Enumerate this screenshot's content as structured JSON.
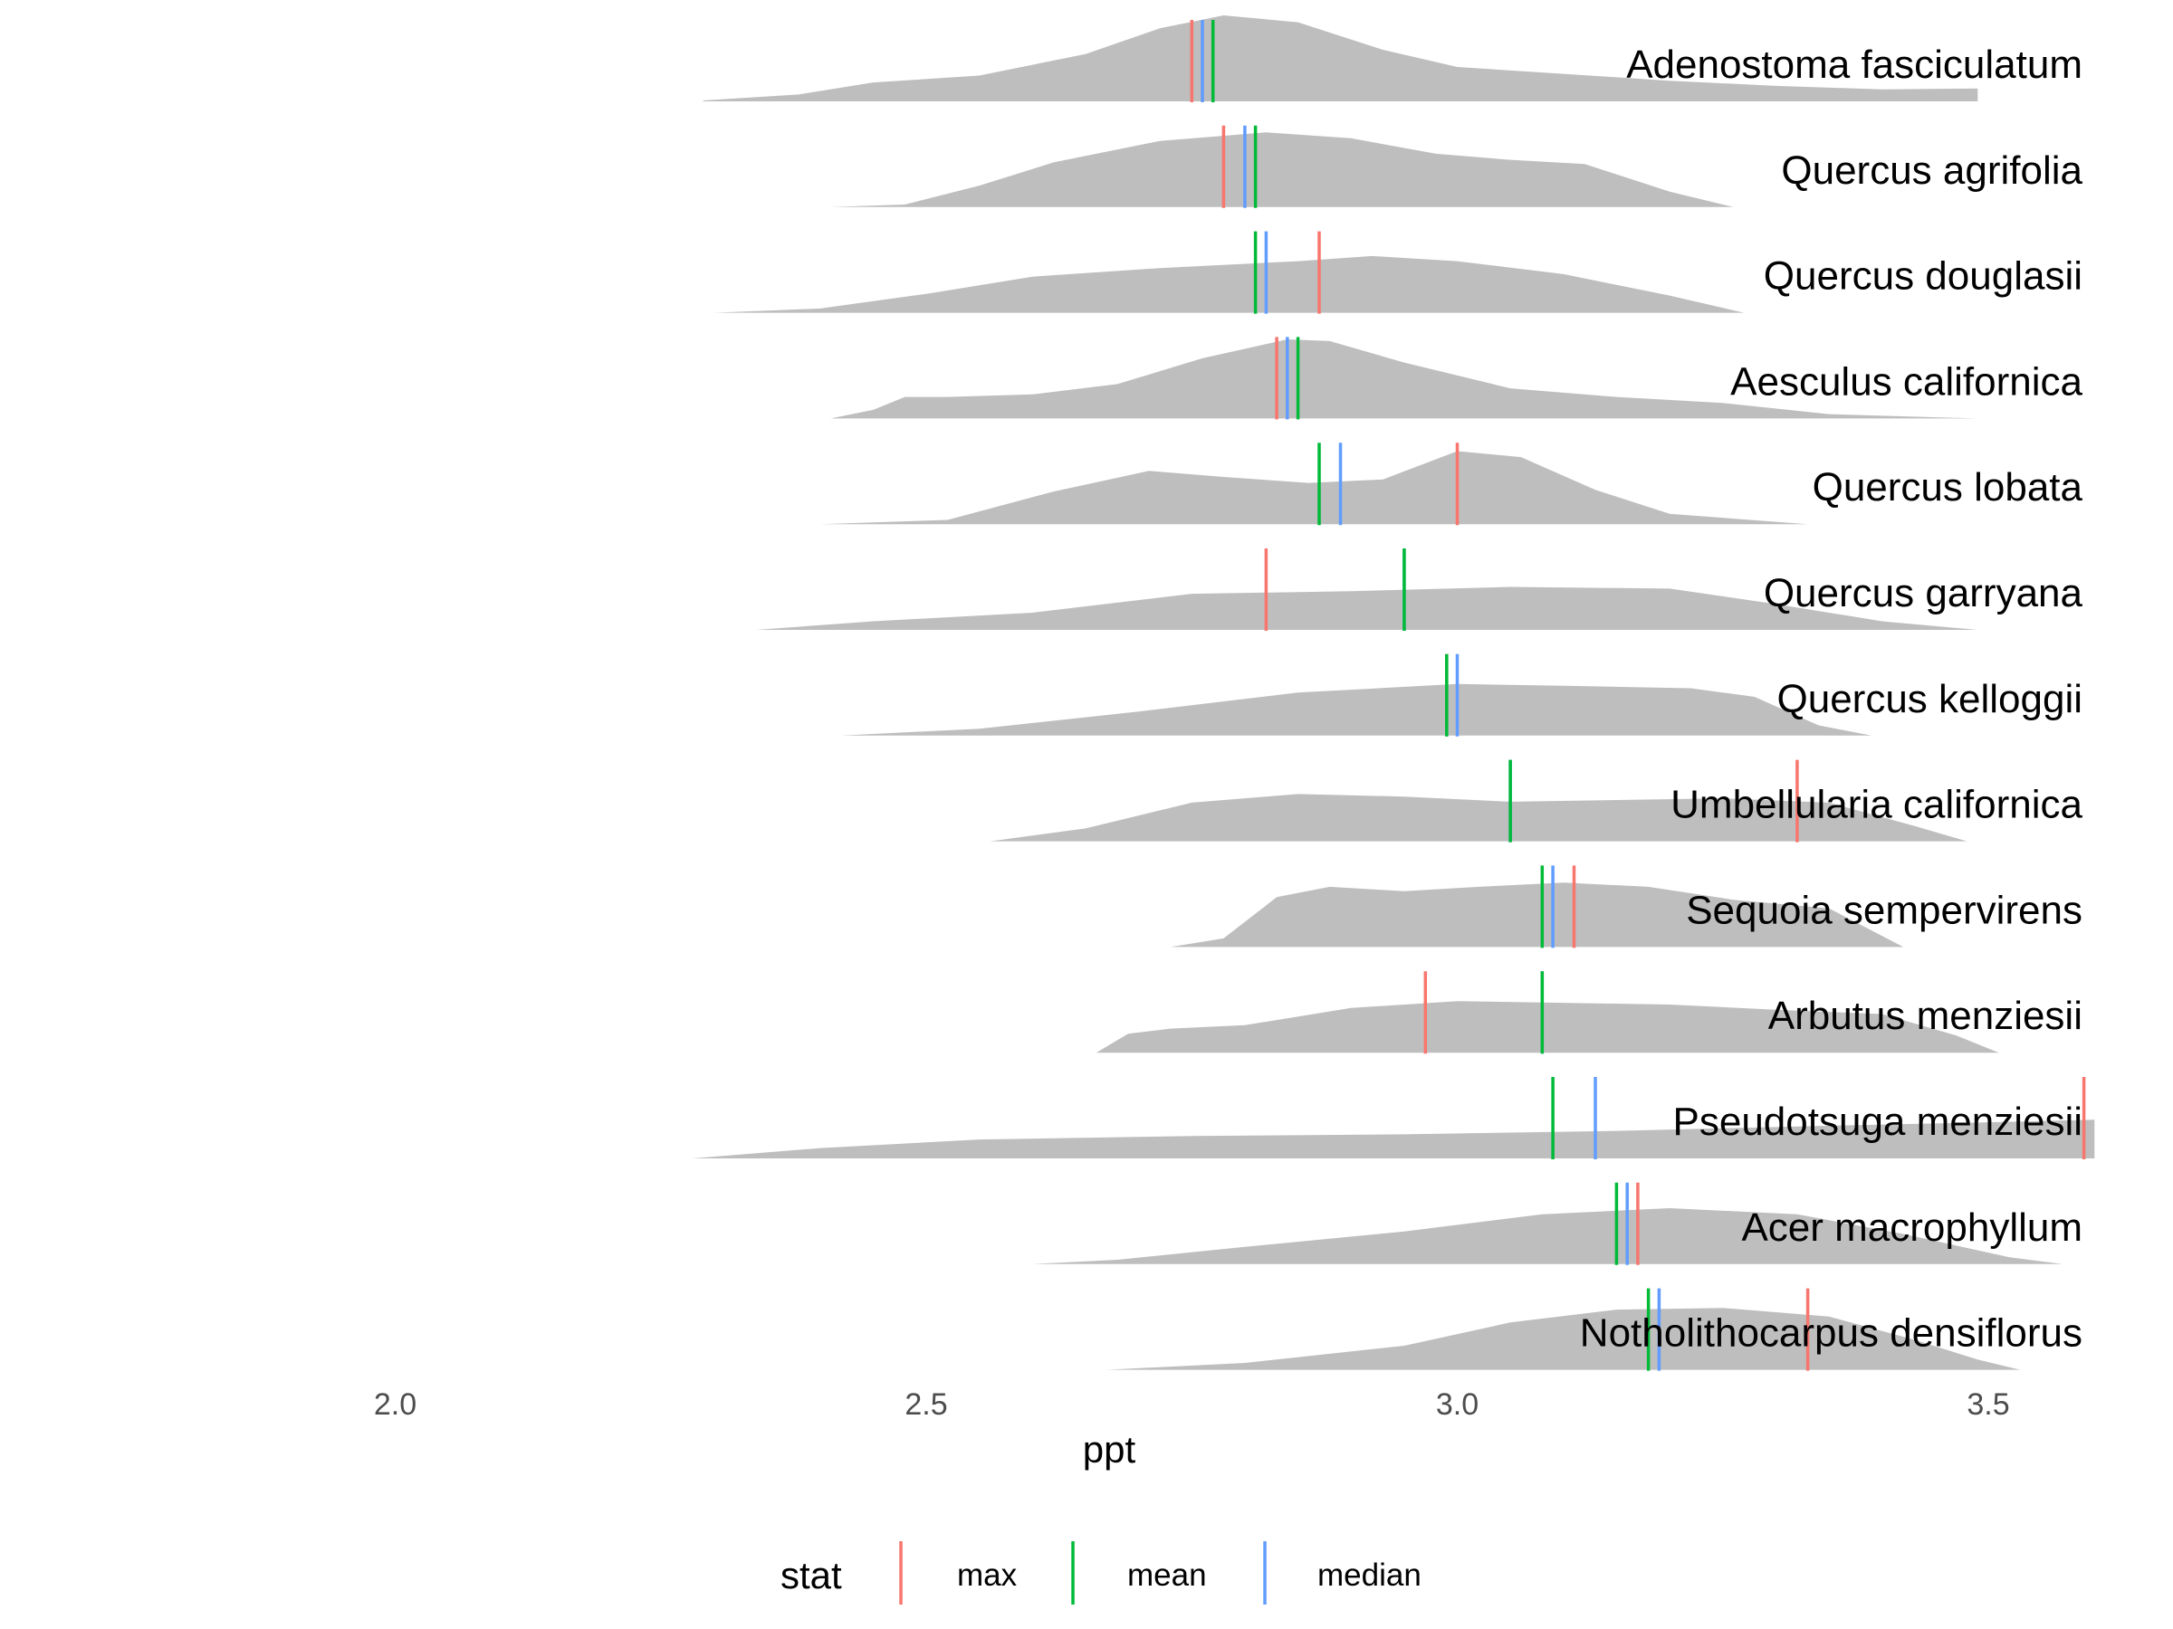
{
  "chart_data": {
    "type": "ridgeline",
    "xlabel": "ppt",
    "ylabel": "",
    "xlim": [
      1.9,
      3.6
    ],
    "x_ticks": [
      "2.0",
      "2.5",
      "3.0",
      "3.5"
    ],
    "x_tick_values": [
      2.0,
      2.5,
      3.0,
      3.5
    ],
    "grid": false,
    "legend": {
      "title": "stat",
      "position": "bottom",
      "entries": [
        {
          "label": "max",
          "color": "#F8766D"
        },
        {
          "label": "mean",
          "color": "#00BA38"
        },
        {
          "label": "median",
          "color": "#619CFF"
        }
      ]
    },
    "species": [
      {
        "name": "Adenostoma fasciculatum",
        "range": [
          2.29,
          3.49
        ],
        "density": [
          [
            2.29,
            0.01
          ],
          [
            2.38,
            0.08
          ],
          [
            2.45,
            0.22
          ],
          [
            2.55,
            0.3
          ],
          [
            2.65,
            0.55
          ],
          [
            2.72,
            0.85
          ],
          [
            2.78,
            1.0
          ],
          [
            2.85,
            0.92
          ],
          [
            2.93,
            0.6
          ],
          [
            3.0,
            0.4
          ],
          [
            3.1,
            0.32
          ],
          [
            3.2,
            0.24
          ],
          [
            3.3,
            0.18
          ],
          [
            3.4,
            0.14
          ],
          [
            3.49,
            0.15
          ]
        ],
        "max": 2.75,
        "mean": 2.77,
        "median": 2.76
      },
      {
        "name": "Quercus agrifolia",
        "range": [
          2.41,
          3.26
        ],
        "density": [
          [
            2.41,
            0.0
          ],
          [
            2.48,
            0.03
          ],
          [
            2.55,
            0.25
          ],
          [
            2.62,
            0.52
          ],
          [
            2.72,
            0.77
          ],
          [
            2.82,
            0.87
          ],
          [
            2.9,
            0.8
          ],
          [
            2.98,
            0.62
          ],
          [
            3.05,
            0.55
          ],
          [
            3.12,
            0.5
          ],
          [
            3.2,
            0.18
          ],
          [
            3.26,
            0.0
          ]
        ],
        "max": 2.78,
        "mean": 2.81,
        "median": 2.8
      },
      {
        "name": "Quercus douglasii",
        "range": [
          2.3,
          3.27
        ],
        "density": [
          [
            2.3,
            0.0
          ],
          [
            2.4,
            0.05
          ],
          [
            2.5,
            0.22
          ],
          [
            2.6,
            0.42
          ],
          [
            2.72,
            0.52
          ],
          [
            2.85,
            0.6
          ],
          [
            2.92,
            0.66
          ],
          [
            3.0,
            0.6
          ],
          [
            3.1,
            0.45
          ],
          [
            3.2,
            0.2
          ],
          [
            3.27,
            0.0
          ]
        ],
        "max": 2.87,
        "mean": 2.81,
        "median": 2.82
      },
      {
        "name": "Aesculus californica",
        "range": [
          2.41,
          3.49
        ],
        "density": [
          [
            2.41,
            0.0
          ],
          [
            2.45,
            0.1
          ],
          [
            2.48,
            0.25
          ],
          [
            2.52,
            0.25
          ],
          [
            2.6,
            0.28
          ],
          [
            2.68,
            0.4
          ],
          [
            2.76,
            0.7
          ],
          [
            2.84,
            0.92
          ],
          [
            2.88,
            0.9
          ],
          [
            2.95,
            0.65
          ],
          [
            3.05,
            0.35
          ],
          [
            3.15,
            0.25
          ],
          [
            3.25,
            0.18
          ],
          [
            3.35,
            0.05
          ],
          [
            3.49,
            0.0
          ]
        ],
        "max": 2.83,
        "mean": 2.85,
        "median": 2.84
      },
      {
        "name": "Quercus lobata",
        "range": [
          2.4,
          3.33
        ],
        "density": [
          [
            2.4,
            0.0
          ],
          [
            2.52,
            0.05
          ],
          [
            2.62,
            0.38
          ],
          [
            2.71,
            0.62
          ],
          [
            2.78,
            0.55
          ],
          [
            2.86,
            0.48
          ],
          [
            2.93,
            0.52
          ],
          [
            3.0,
            0.85
          ],
          [
            3.06,
            0.78
          ],
          [
            3.13,
            0.4
          ],
          [
            3.2,
            0.12
          ],
          [
            3.33,
            0.0
          ]
        ],
        "max": 3.0,
        "mean": 2.87,
        "median": 2.89
      },
      {
        "name": "Quercus garryana",
        "range": [
          2.34,
          3.49
        ],
        "density": [
          [
            2.34,
            0.0
          ],
          [
            2.45,
            0.1
          ],
          [
            2.6,
            0.2
          ],
          [
            2.75,
            0.42
          ],
          [
            2.9,
            0.45
          ],
          [
            3.05,
            0.5
          ],
          [
            3.2,
            0.48
          ],
          [
            3.3,
            0.3
          ],
          [
            3.4,
            0.1
          ],
          [
            3.49,
            0.0
          ]
        ],
        "max": 2.82,
        "mean": 2.95,
        "median": 2.95
      },
      {
        "name": "Quercus kelloggii",
        "range": [
          2.42,
          3.39
        ],
        "density": [
          [
            2.42,
            0.0
          ],
          [
            2.55,
            0.08
          ],
          [
            2.7,
            0.28
          ],
          [
            2.85,
            0.5
          ],
          [
            3.0,
            0.6
          ],
          [
            3.1,
            0.58
          ],
          [
            3.22,
            0.55
          ],
          [
            3.28,
            0.45
          ],
          [
            3.34,
            0.12
          ],
          [
            3.39,
            0.0
          ]
        ],
        "max": 2.99,
        "mean": 2.99,
        "median": 3.0
      },
      {
        "name": "Umbellularia californica",
        "range": [
          2.56,
          3.48
        ],
        "density": [
          [
            2.56,
            0.0
          ],
          [
            2.65,
            0.15
          ],
          [
            2.75,
            0.45
          ],
          [
            2.85,
            0.55
          ],
          [
            2.95,
            0.52
          ],
          [
            3.05,
            0.46
          ],
          [
            3.15,
            0.48
          ],
          [
            3.25,
            0.5
          ],
          [
            3.35,
            0.45
          ],
          [
            3.43,
            0.18
          ],
          [
            3.48,
            0.0
          ]
        ],
        "max": 3.32,
        "mean": 3.05,
        "median": 3.05
      },
      {
        "name": "Sequoia sempervirens",
        "range": [
          2.73,
          3.42
        ],
        "density": [
          [
            2.73,
            0.0
          ],
          [
            2.78,
            0.1
          ],
          [
            2.83,
            0.58
          ],
          [
            2.88,
            0.7
          ],
          [
            2.95,
            0.65
          ],
          [
            3.02,
            0.7
          ],
          [
            3.1,
            0.75
          ],
          [
            3.18,
            0.7
          ],
          [
            3.26,
            0.55
          ],
          [
            3.35,
            0.45
          ],
          [
            3.42,
            0.0
          ]
        ],
        "max": 3.11,
        "mean": 3.08,
        "median": 3.09
      },
      {
        "name": "Arbutus menziesii",
        "range": [
          2.66,
          3.51
        ],
        "density": [
          [
            2.66,
            0.0
          ],
          [
            2.69,
            0.22
          ],
          [
            2.73,
            0.28
          ],
          [
            2.8,
            0.32
          ],
          [
            2.9,
            0.52
          ],
          [
            3.0,
            0.6
          ],
          [
            3.1,
            0.58
          ],
          [
            3.2,
            0.56
          ],
          [
            3.3,
            0.5
          ],
          [
            3.4,
            0.45
          ],
          [
            3.47,
            0.2
          ],
          [
            3.51,
            0.0
          ]
        ],
        "max": 2.97,
        "mean": 3.08,
        "median": 3.08
      },
      {
        "name": "Pseudotsuga menziesii",
        "range": [
          2.28,
          3.6
        ],
        "density": [
          [
            2.28,
            0.0
          ],
          [
            2.4,
            0.12
          ],
          [
            2.55,
            0.22
          ],
          [
            2.75,
            0.26
          ],
          [
            2.95,
            0.28
          ],
          [
            3.15,
            0.32
          ],
          [
            3.35,
            0.38
          ],
          [
            3.5,
            0.42
          ],
          [
            3.6,
            0.45
          ]
        ],
        "max": 3.59,
        "mean": 3.09,
        "median": 3.13
      },
      {
        "name": "Acer macrophyllum",
        "range": [
          2.38,
          3.57
        ],
        "density": [
          [
            2.38,
            0.0
          ],
          [
            2.47,
            0.0
          ],
          [
            2.6,
            0.0
          ],
          [
            2.68,
            0.05
          ],
          [
            2.8,
            0.2
          ],
          [
            2.95,
            0.38
          ],
          [
            3.08,
            0.58
          ],
          [
            3.2,
            0.65
          ],
          [
            3.32,
            0.58
          ],
          [
            3.42,
            0.35
          ],
          [
            3.52,
            0.08
          ],
          [
            3.57,
            0.0
          ]
        ],
        "max": 3.17,
        "mean": 3.15,
        "median": 3.16
      },
      {
        "name": "Notholithocarpus densiflorus",
        "range": [
          2.67,
          3.53
        ],
        "density": [
          [
            2.67,
            0.0
          ],
          [
            2.8,
            0.08
          ],
          [
            2.95,
            0.28
          ],
          [
            3.05,
            0.55
          ],
          [
            3.15,
            0.7
          ],
          [
            3.25,
            0.72
          ],
          [
            3.35,
            0.62
          ],
          [
            3.43,
            0.35
          ],
          [
            3.49,
            0.12
          ],
          [
            3.53,
            0.0
          ]
        ],
        "max": 3.33,
        "mean": 3.18,
        "median": 3.19
      }
    ]
  }
}
